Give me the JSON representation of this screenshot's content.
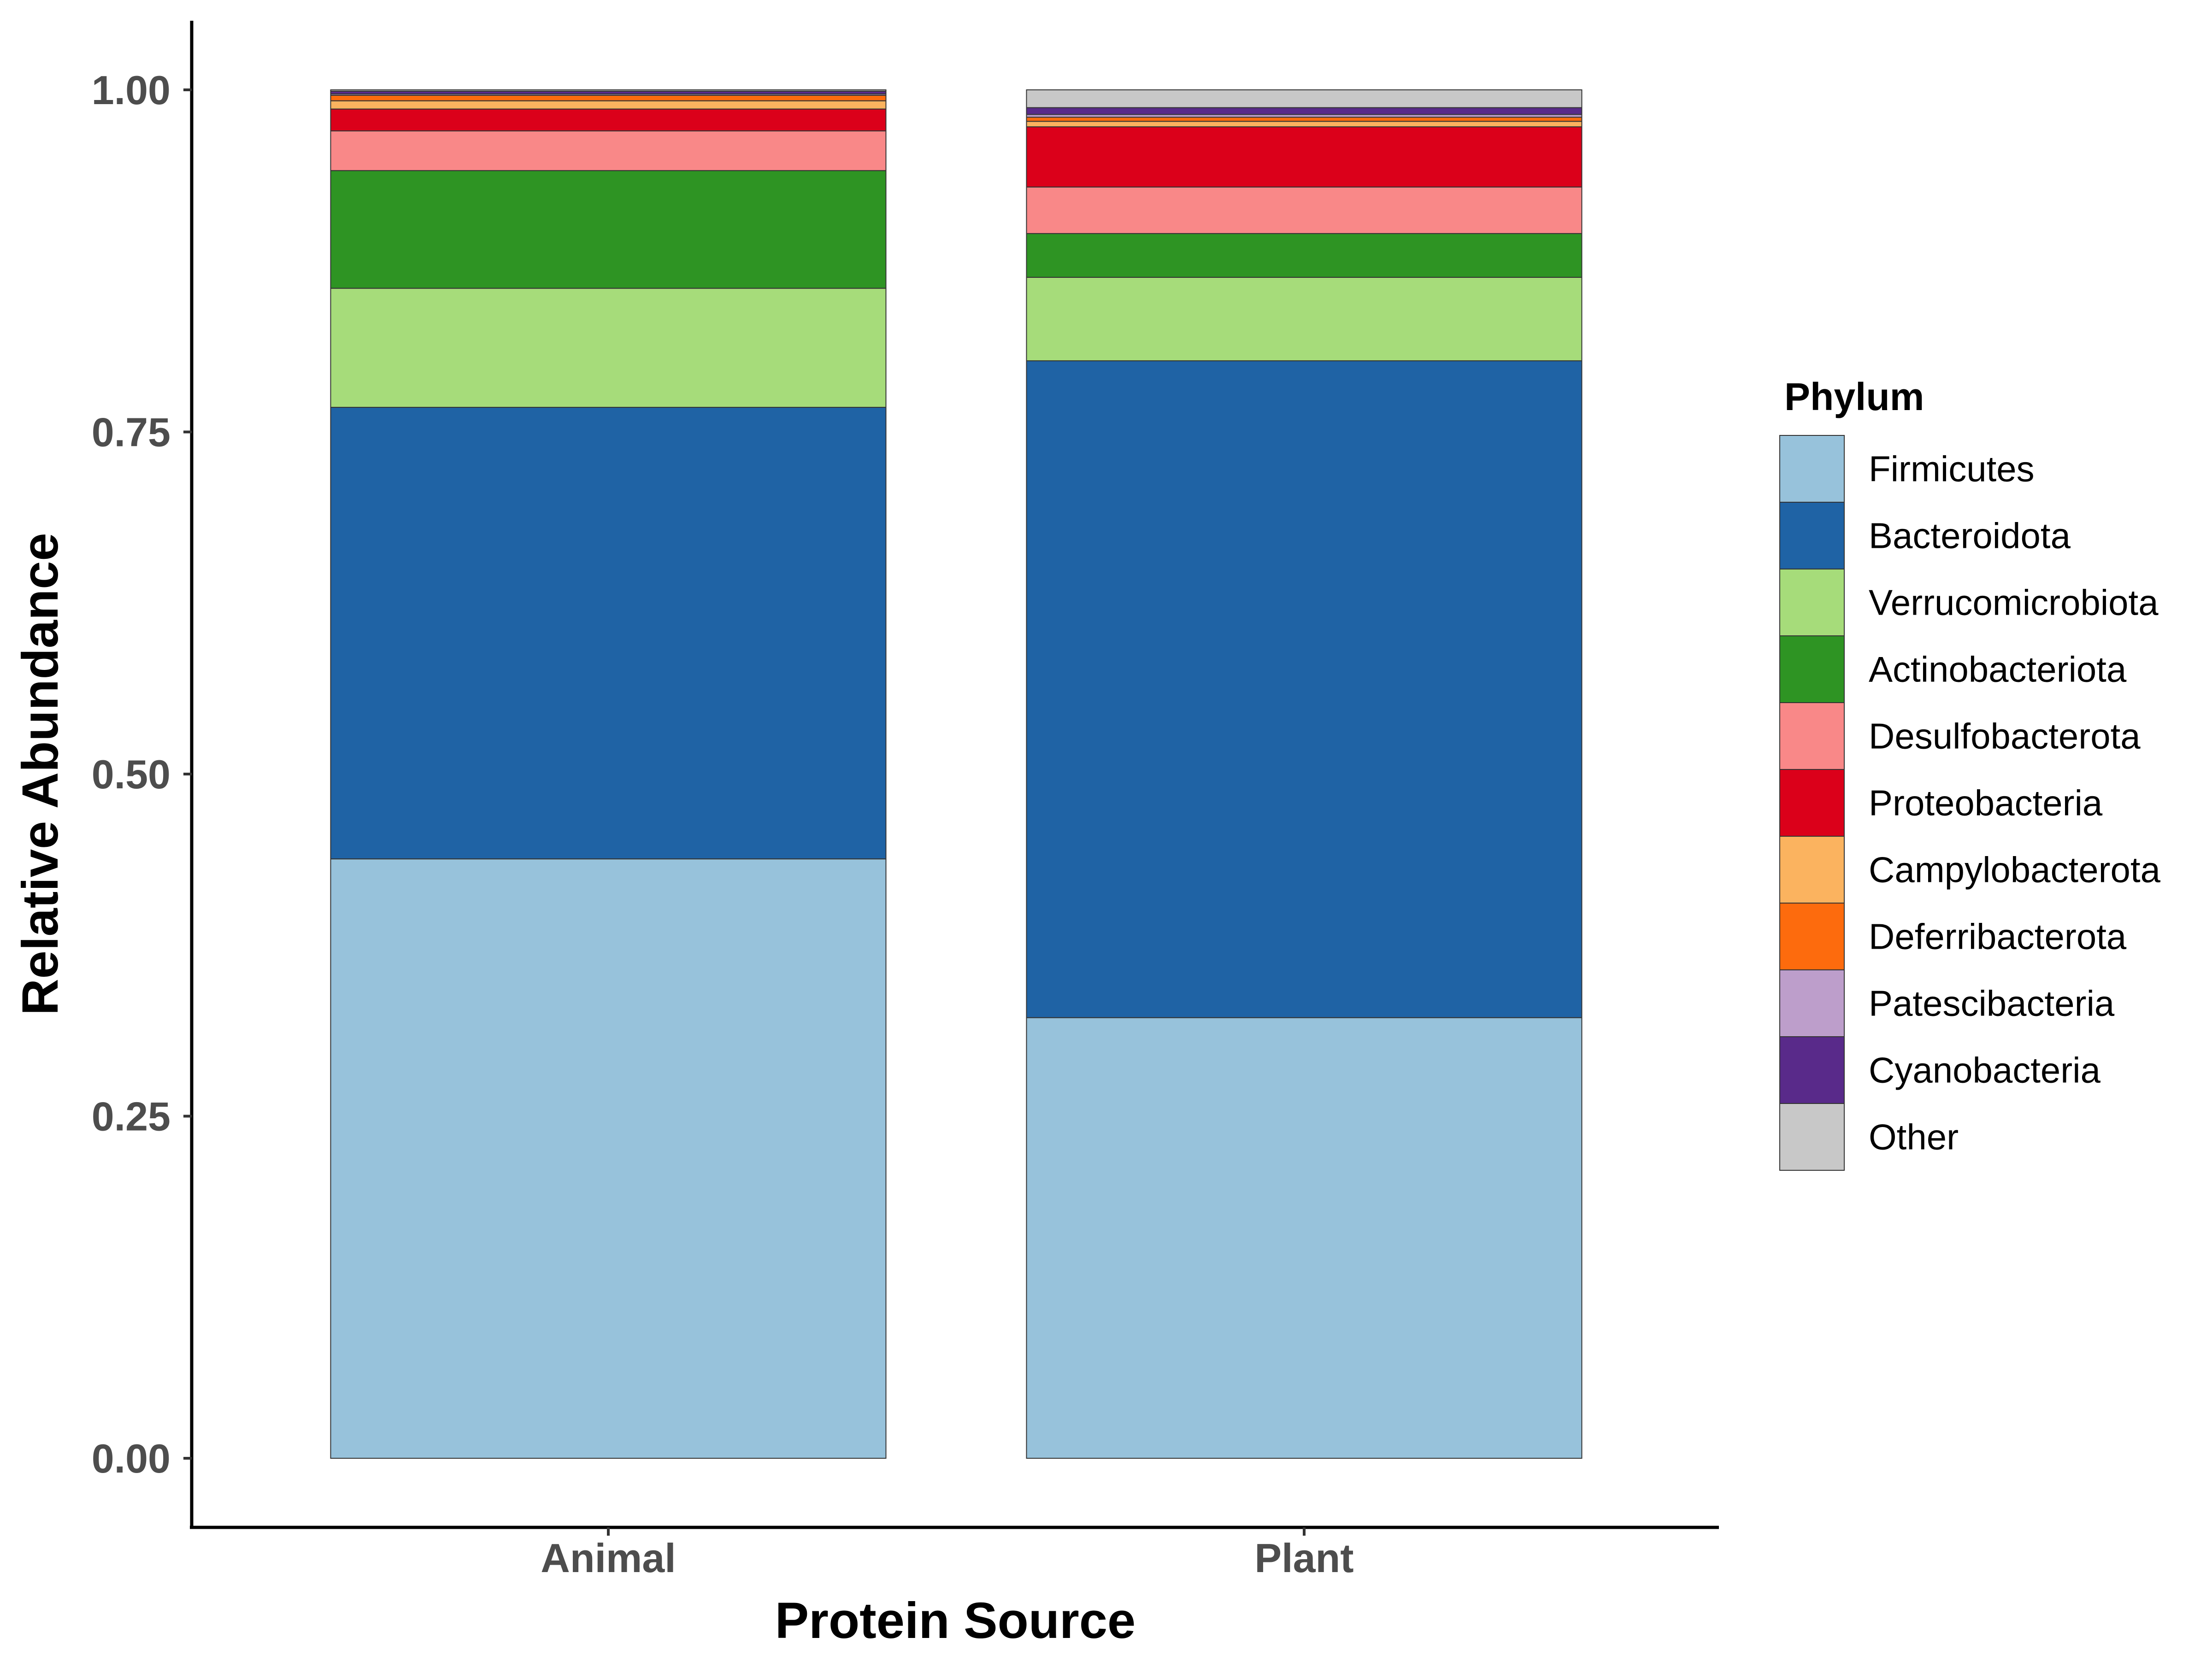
{
  "chart_data": {
    "type": "bar",
    "stacked": true,
    "categories": [
      "Animal",
      "Plant"
    ],
    "xlabel": "Protein Source",
    "ylabel": "Relative Abundance",
    "ylim": [
      0,
      1
    ],
    "yticks": [
      "0.00",
      "0.25",
      "0.50",
      "0.75",
      "1.00"
    ],
    "ytick_values": [
      0,
      0.25,
      0.5,
      0.75,
      1.0
    ],
    "grid": false,
    "legend": {
      "title": "Phylum",
      "position": "right"
    },
    "series": [
      {
        "name": "Firmicutes",
        "color": "#97c2db",
        "values": [
          0.438,
          0.322
        ]
      },
      {
        "name": "Bacteroidota",
        "color": "#1f63a5",
        "values": [
          0.33,
          0.48
        ]
      },
      {
        "name": "Verrucomicrobiota",
        "color": "#a6dc7a",
        "values": [
          0.087,
          0.061
        ]
      },
      {
        "name": "Actinobacteriota",
        "color": "#2e9423",
        "values": [
          0.086,
          0.032
        ]
      },
      {
        "name": "Desulfobacterota",
        "color": "#f98888",
        "values": [
          0.029,
          0.034
        ]
      },
      {
        "name": "Proteobacteria",
        "color": "#db001a",
        "values": [
          0.016,
          0.044
        ]
      },
      {
        "name": "Campylobacterota",
        "color": "#fbb35f",
        "values": [
          0.006,
          0.004
        ]
      },
      {
        "name": "Deferribacterota",
        "color": "#fd6b0d",
        "values": [
          0.004,
          0.003
        ]
      },
      {
        "name": "Patescibacteria",
        "color": "#bd9ecb",
        "values": [
          0.001,
          0.002
        ]
      },
      {
        "name": "Cyanobacteria",
        "color": "#592a8a",
        "values": [
          0.002,
          0.005
        ]
      },
      {
        "name": "Other",
        "color": "#c8c8c8",
        "values": [
          0.001,
          0.013
        ]
      }
    ]
  }
}
